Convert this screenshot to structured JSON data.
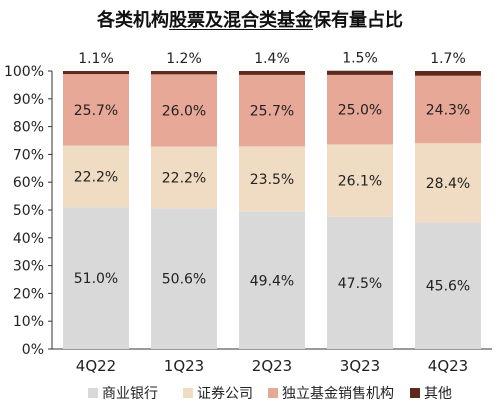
{
  "chart_data": {
    "type": "bar",
    "stacked": true,
    "title_parts": [
      "各类机构",
      "股票及混合类基金",
      "保有量占比"
    ],
    "categories": [
      "4Q22",
      "1Q23",
      "2Q23",
      "3Q23",
      "4Q23"
    ],
    "y_ticks": [
      "0%",
      "10%",
      "20%",
      "30%",
      "40%",
      "50%",
      "60%",
      "70%",
      "80%",
      "90%",
      "100%"
    ],
    "ylim": [
      0,
      100
    ],
    "series": [
      {
        "name": "商业银行",
        "color": "#d9d9d9",
        "values": [
          51.0,
          50.6,
          49.4,
          47.5,
          45.6
        ],
        "labels": [
          "51.0%",
          "50.6%",
          "49.4%",
          "47.5%",
          "45.6%"
        ]
      },
      {
        "name": "证券公司",
        "color": "#efdcc2",
        "values": [
          22.2,
          22.2,
          23.5,
          26.1,
          28.4
        ],
        "labels": [
          "22.2%",
          "22.2%",
          "23.5%",
          "26.1%",
          "28.4%"
        ]
      },
      {
        "name": "独立基金销售机构",
        "color": "#e7a898",
        "values": [
          25.7,
          26.0,
          25.7,
          25.0,
          24.3
        ],
        "labels": [
          "25.7%",
          "26.0%",
          "25.7%",
          "25.0%",
          "24.3%"
        ]
      },
      {
        "name": "其他",
        "color": "#5e2a1c",
        "values": [
          1.1,
          1.2,
          1.4,
          1.5,
          1.7
        ],
        "labels": [
          "1.1%",
          "1.2%",
          "1.4%",
          "1.5%",
          "1.7%"
        ]
      }
    ],
    "grid": false,
    "legend_position": "bottom"
  }
}
